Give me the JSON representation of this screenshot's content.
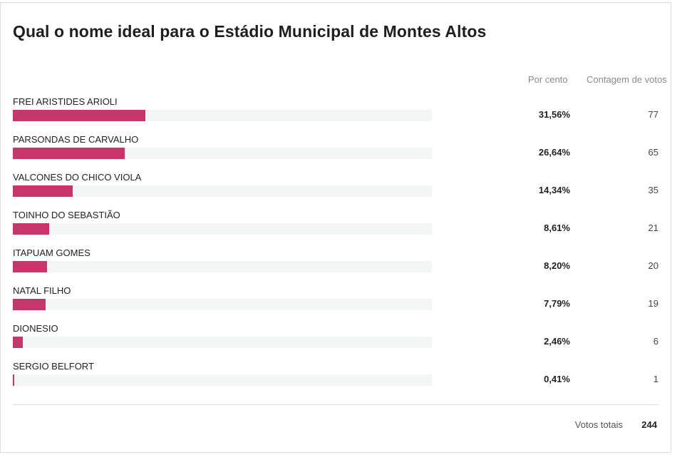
{
  "poll": {
    "title": "Qual o nome ideal para o Estádio Municipal de Montes Altos",
    "headers": {
      "percent": "Por cento",
      "count": "Contagem de votos"
    },
    "options": [
      {
        "label": "FREI ARISTIDES ARIOLI",
        "percent_text": "31,56%",
        "percent": 31.56,
        "votes": "77"
      },
      {
        "label": "PARSONDAS DE CARVALHO",
        "percent_text": "26,64%",
        "percent": 26.64,
        "votes": "65"
      },
      {
        "label": "VALCONES DO CHICO VIOLA",
        "percent_text": "14,34%",
        "percent": 14.34,
        "votes": "35"
      },
      {
        "label": "TOINHO DO SEBASTIÃO",
        "percent_text": "8,61%",
        "percent": 8.61,
        "votes": "21"
      },
      {
        "label": "ITAPUAM GOMES",
        "percent_text": "8,20%",
        "percent": 8.2,
        "votes": "20"
      },
      {
        "label": "NATAL FILHO",
        "percent_text": "7,79%",
        "percent": 7.79,
        "votes": "19"
      },
      {
        "label": "DIONESIO",
        "percent_text": "2,46%",
        "percent": 2.46,
        "votes": "6"
      },
      {
        "label": "SERGIO BELFORT",
        "percent_text": "0,41%",
        "percent": 0.41,
        "votes": "1"
      }
    ],
    "total_label": "Votos totais",
    "total_value": "244",
    "colors": {
      "bar_fill": "#c9356a",
      "bar_track": "#f4f5f5"
    }
  }
}
